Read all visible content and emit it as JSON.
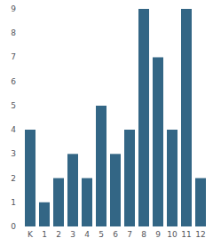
{
  "chart_data": {
    "type": "bar",
    "categories": [
      "K",
      "1",
      "2",
      "3",
      "4",
      "5",
      "6",
      "7",
      "8",
      "9",
      "10",
      "11",
      "12"
    ],
    "values": [
      4,
      1,
      2,
      3,
      2,
      5,
      3,
      4,
      9,
      7,
      4,
      9,
      2
    ],
    "color": "#336685",
    "ylim": [
      0,
      9
    ],
    "yticks": [
      0,
      1,
      2,
      3,
      4,
      5,
      6,
      7,
      8,
      9
    ],
    "grid": false
  }
}
